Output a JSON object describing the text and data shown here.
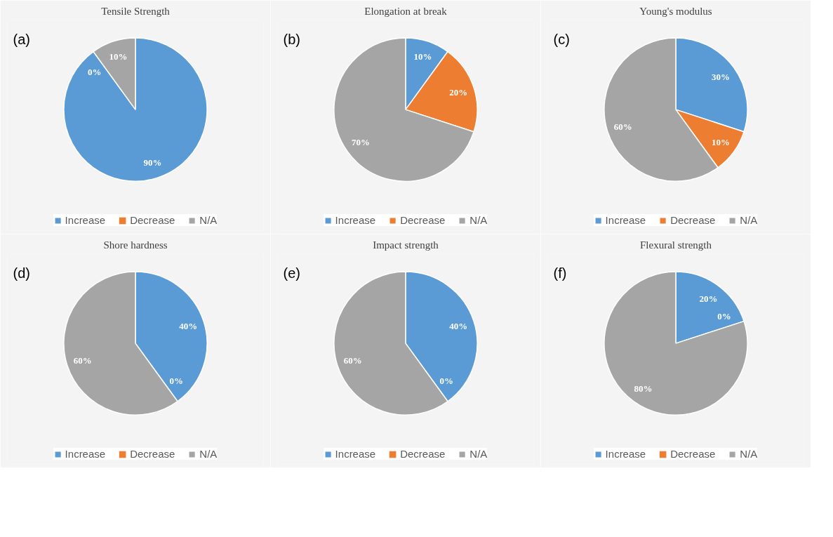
{
  "chart_data": [
    {
      "type": "pie",
      "title": "Tensile Strength",
      "annotations": [
        "(a)"
      ],
      "categories": [
        "Increase",
        "Decrease",
        "N/A"
      ],
      "values": [
        90,
        0,
        10
      ],
      "value_labels": [
        "90%",
        "0%",
        "10%"
      ],
      "colors": [
        "#5b9bd5",
        "#ed7d31",
        "#a5a5a5"
      ],
      "legend": "bottom"
    },
    {
      "type": "pie",
      "title": "Elongation at break",
      "annotations": [
        "(b)"
      ],
      "categories": [
        "Increase",
        "Decrease",
        "N/A"
      ],
      "values": [
        10,
        20,
        70
      ],
      "value_labels": [
        "10%",
        "20%",
        "70%"
      ],
      "colors": [
        "#5b9bd5",
        "#ed7d31",
        "#a5a5a5"
      ],
      "legend": "bottom"
    },
    {
      "type": "pie",
      "title": "Young's modulus",
      "annotations": [
        "(c)"
      ],
      "categories": [
        "Increase",
        "Decrease",
        "N/A"
      ],
      "values": [
        30,
        10,
        60
      ],
      "value_labels": [
        "30%",
        "10%",
        "60%"
      ],
      "colors": [
        "#5b9bd5",
        "#ed7d31",
        "#a5a5a5"
      ],
      "legend": "bottom"
    },
    {
      "type": "pie",
      "title": "Shore hardness",
      "annotations": [
        "(d)"
      ],
      "categories": [
        "Increase",
        "Decrease",
        "N/A"
      ],
      "values": [
        40,
        0,
        60
      ],
      "value_labels": [
        "40%",
        "0%",
        "60%"
      ],
      "colors": [
        "#5b9bd5",
        "#ed7d31",
        "#a5a5a5"
      ],
      "legend": "bottom"
    },
    {
      "type": "pie",
      "title": "Impact strength",
      "annotations": [
        "(e)"
      ],
      "categories": [
        "Increase",
        "Decrease",
        "N/A"
      ],
      "values": [
        40,
        0,
        60
      ],
      "value_labels": [
        "40%",
        "0%",
        "60%"
      ],
      "colors": [
        "#5b9bd5",
        "#ed7d31",
        "#a5a5a5"
      ],
      "legend": "bottom"
    },
    {
      "type": "pie",
      "title": "Flexural strength",
      "annotations": [
        "(f)"
      ],
      "categories": [
        "Increase",
        "Decrease",
        "N/A"
      ],
      "values": [
        20,
        0,
        80
      ],
      "value_labels": [
        "20%",
        "0%",
        "80%"
      ],
      "colors": [
        "#5b9bd5",
        "#ed7d31",
        "#a5a5a5"
      ],
      "legend": "bottom"
    }
  ]
}
